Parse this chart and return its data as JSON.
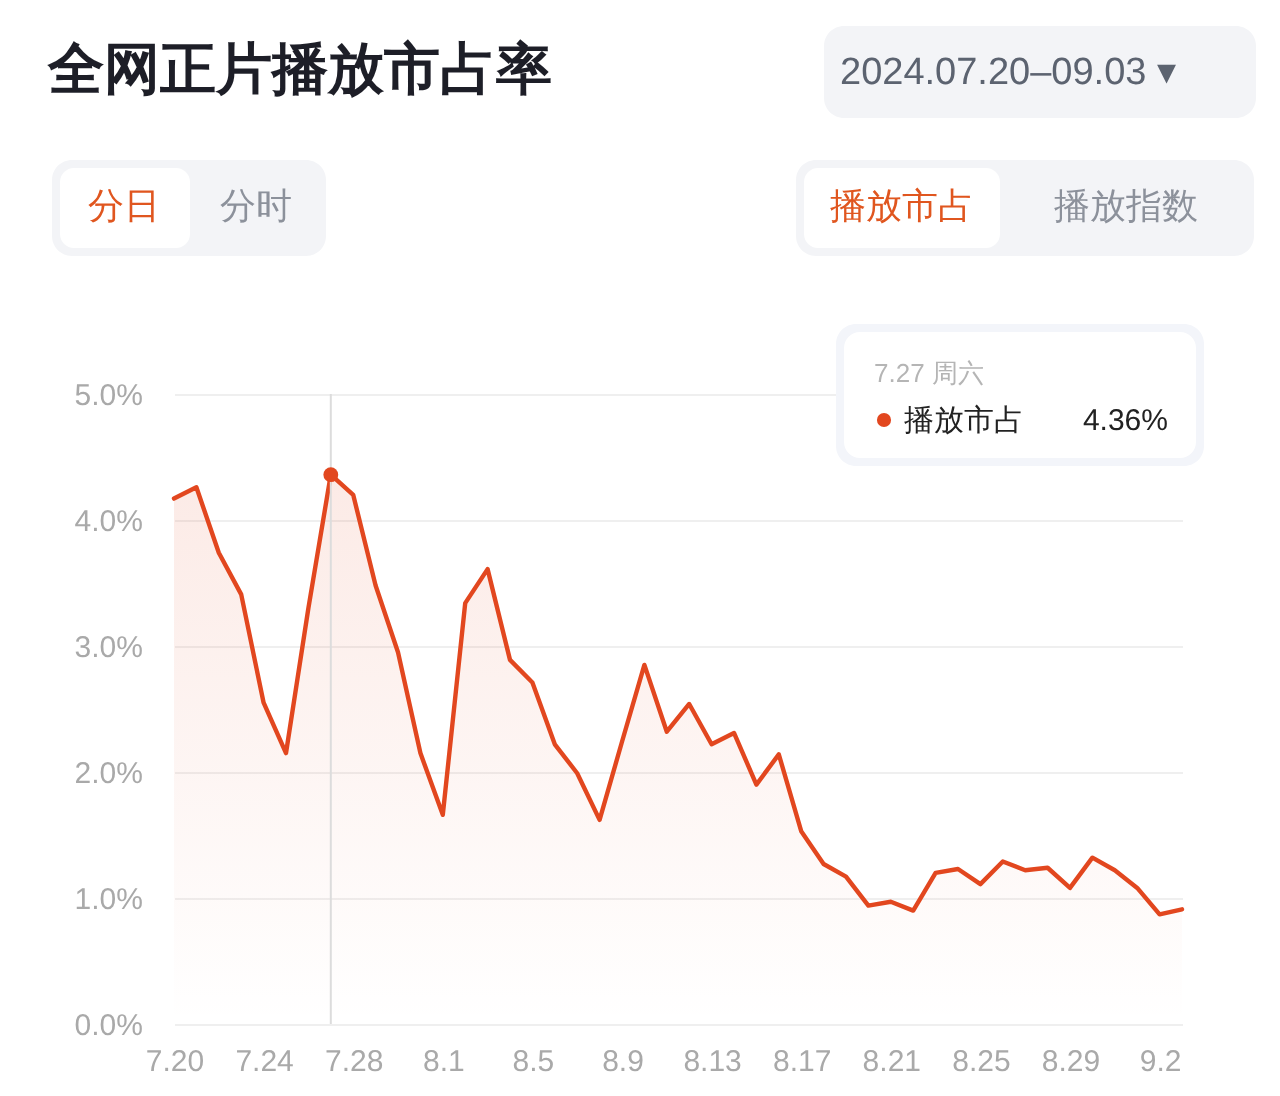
{
  "chart_data": {
    "type": "area",
    "title": "全网正片播放市占率",
    "annotations": [
      "2024.07.20–09.03 ▾",
      "分日",
      "分时",
      "播放市占",
      "播放指数",
      "7.27 周六",
      "4.36%"
    ],
    "x": [
      "2024-07-20",
      "2024-07-21",
      "2024-07-22",
      "2024-07-23",
      "2024-07-24",
      "2024-07-25",
      "2024-07-26",
      "2024-07-27",
      "2024-07-28",
      "2024-07-29",
      "2024-07-30",
      "2024-07-31",
      "2024-08-01",
      "2024-08-02",
      "2024-08-03",
      "2024-08-04",
      "2024-08-05",
      "2024-08-06",
      "2024-08-07",
      "2024-08-08",
      "2024-08-09",
      "2024-08-10",
      "2024-08-11",
      "2024-08-12",
      "2024-08-13",
      "2024-08-14",
      "2024-08-15",
      "2024-08-16",
      "2024-08-17",
      "2024-08-18",
      "2024-08-19",
      "2024-08-20",
      "2024-08-21",
      "2024-08-22",
      "2024-08-23",
      "2024-08-24",
      "2024-08-25",
      "2024-08-26",
      "2024-08-27",
      "2024-08-28",
      "2024-08-29",
      "2024-08-30",
      "2024-08-31",
      "2024-09-01",
      "2024-09-02",
      "2024-09-03"
    ],
    "series": [
      {
        "name": "播放市占",
        "color": "#e2471f",
        "values": [
          4.17,
          4.26,
          3.74,
          3.41,
          2.55,
          2.15,
          3.3,
          4.36,
          4.2,
          3.48,
          2.95,
          2.15,
          1.66,
          3.34,
          3.61,
          2.89,
          2.71,
          2.22,
          1.99,
          1.62,
          2.24,
          2.85,
          2.32,
          2.54,
          2.22,
          2.31,
          1.9,
          2.14,
          1.53,
          1.27,
          1.17,
          0.94,
          0.97,
          0.9,
          1.2,
          1.23,
          1.11,
          1.29,
          1.22,
          1.24,
          1.08,
          1.32,
          1.22,
          1.08,
          0.87,
          0.91
        ]
      }
    ],
    "xlim": [
      "2024-07-20",
      "2024-09-03"
    ],
    "xticks": [
      {
        "value": "2024-07-20",
        "label": "7.20"
      },
      {
        "value": "2024-07-24",
        "label": "7.24"
      },
      {
        "value": "2024-07-28",
        "label": "7.28"
      },
      {
        "value": "2024-08-01",
        "label": "8.1"
      },
      {
        "value": "2024-08-05",
        "label": "8.5"
      },
      {
        "value": "2024-08-09",
        "label": "8.9"
      },
      {
        "value": "2024-08-13",
        "label": "8.13"
      },
      {
        "value": "2024-08-17",
        "label": "8.17"
      },
      {
        "value": "2024-08-21",
        "label": "8.21"
      },
      {
        "value": "2024-08-25",
        "label": "8.25"
      },
      {
        "value": "2024-08-29",
        "label": "8.29"
      },
      {
        "value": "2024-09-02",
        "label": "9.2"
      }
    ],
    "ylim": [
      0,
      5
    ],
    "yticks": [
      {
        "value": 0,
        "label": "0.0%"
      },
      {
        "value": 1,
        "label": "1.0%"
      },
      {
        "value": 2,
        "label": "2.0%"
      },
      {
        "value": 3,
        "label": "3.0%"
      },
      {
        "value": 4,
        "label": "4.0%"
      },
      {
        "value": 5,
        "label": "5.0%"
      }
    ],
    "ref_lines": [
      {
        "axis": "x",
        "value": "2024-07-27",
        "color": "#dcdcdc"
      }
    ],
    "grid": "y",
    "legend": "top right"
  }
}
